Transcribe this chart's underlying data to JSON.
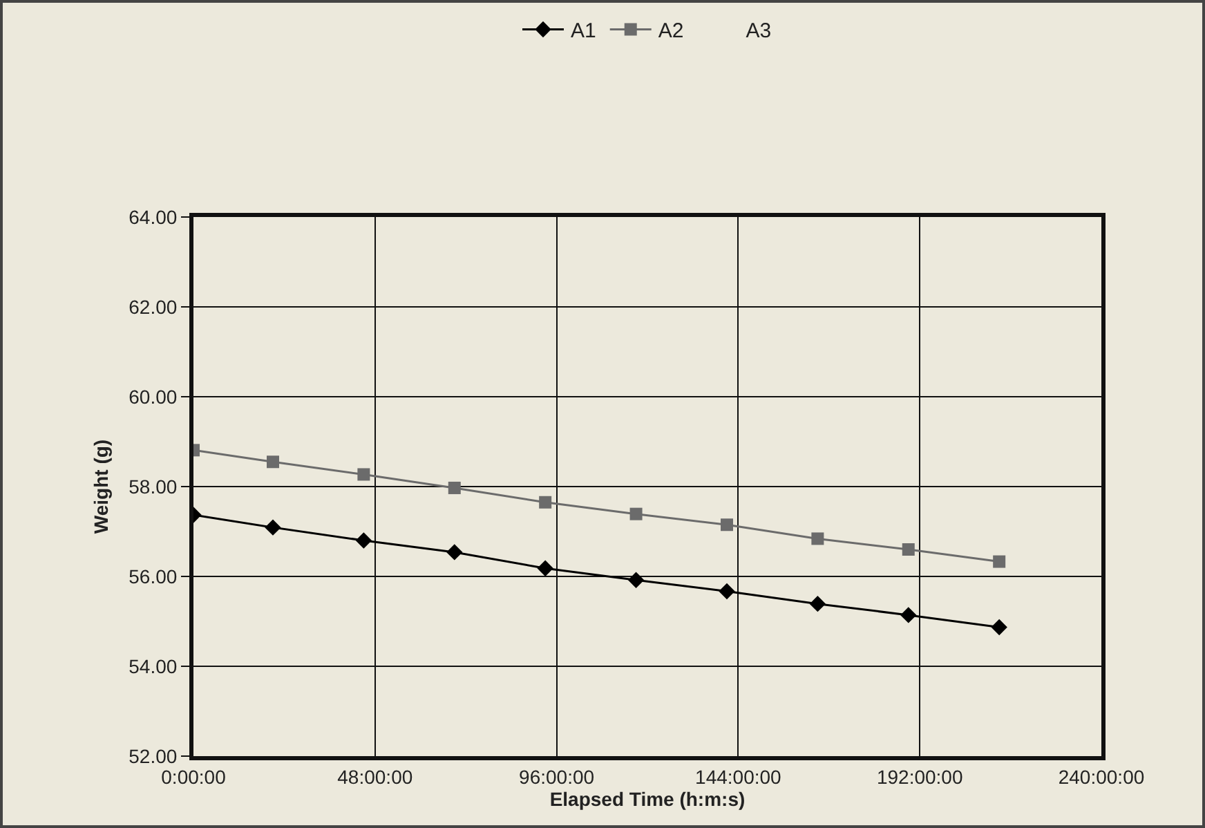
{
  "chart_data": {
    "type": "line",
    "xlabel": "Elapsed Time (h:m:s)",
    "ylabel": "Weight (g)",
    "x": [
      0,
      21,
      45,
      69,
      93,
      117,
      141,
      165,
      189,
      213
    ],
    "series": [
      {
        "name": "A1",
        "color": "#000000",
        "marker": "diamond",
        "values": [
          57.37,
          57.09,
          56.8,
          56.54,
          56.18,
          55.92,
          55.67,
          55.39,
          55.14,
          54.87
        ]
      },
      {
        "name": "A2",
        "color": "#6b6b6b",
        "marker": "square",
        "values": [
          58.81,
          58.55,
          58.27,
          57.97,
          57.65,
          57.39,
          57.15,
          56.84,
          56.6,
          56.33
        ]
      },
      {
        "name": "A3",
        "marker": "none",
        "values": [
          null,
          null,
          null,
          null,
          null,
          null,
          null,
          null,
          null,
          null
        ]
      }
    ],
    "xlim": [
      0,
      240
    ],
    "xticks": [
      {
        "value": 0,
        "label": "0:00:00"
      },
      {
        "value": 48,
        "label": "48:00:00"
      },
      {
        "value": 96,
        "label": "96:00:00"
      },
      {
        "value": 144,
        "label": "144:00:00"
      },
      {
        "value": 192,
        "label": "192:00:00"
      },
      {
        "value": 240,
        "label": "240:00:00"
      }
    ],
    "ylim": [
      52,
      64
    ],
    "yticks": [
      {
        "value": 52,
        "label": "52.00"
      },
      {
        "value": 54,
        "label": "54.00"
      },
      {
        "value": 56,
        "label": "56.00"
      },
      {
        "value": 58,
        "label": "58.00"
      },
      {
        "value": 60,
        "label": "60.00"
      },
      {
        "value": 62,
        "label": "62.00"
      },
      {
        "value": 64,
        "label": "64.00"
      }
    ],
    "grid": true,
    "legend": "top",
    "line_style": "solid"
  }
}
